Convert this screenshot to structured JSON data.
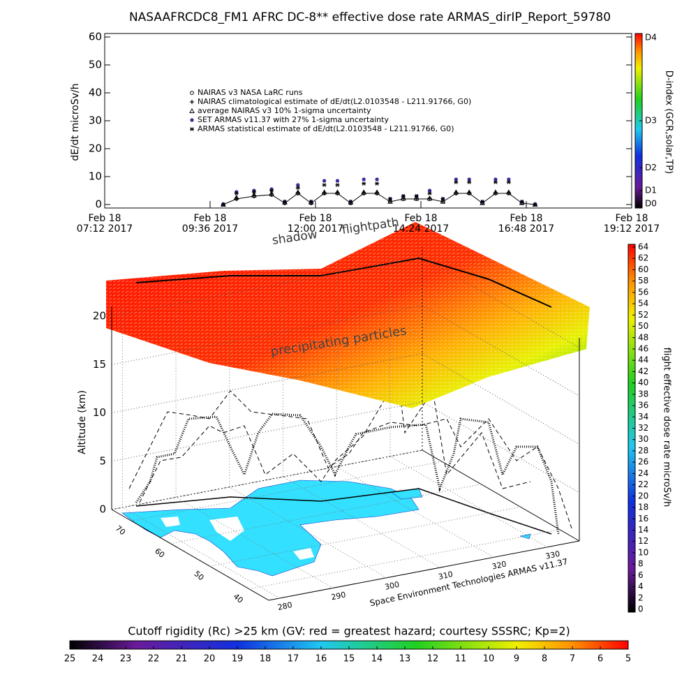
{
  "chart_data": [
    {
      "type": "line",
      "title": "NASAAFRCDC8_FM1 AFRC DC-8** effective dose rate ARMAS_dirIP_Report_59780",
      "y_label": "dE/dt microSv/h",
      "xlim": [
        7.2,
        19.2
      ],
      "xticks": [
        {
          "value": 7.2,
          "label": "Feb 18\n07:12 2017"
        },
        {
          "value": 9.6,
          "label": "Feb 18\n09:36 2017"
        },
        {
          "value": 12.0,
          "label": "Feb 18\n12:00 2017"
        },
        {
          "value": 14.4,
          "label": "Feb 18\n14:24 2017"
        },
        {
          "value": 16.8,
          "label": "Feb 18\n16:48 2017"
        },
        {
          "value": 19.2,
          "label": "Feb 18\n19:12 2017"
        }
      ],
      "ylim": [
        0,
        60
      ],
      "yticks": [
        0,
        10,
        20,
        30,
        40,
        50,
        60
      ],
      "x": [
        9.9,
        10.2,
        10.6,
        11.0,
        11.3,
        11.6,
        11.9,
        12.2,
        12.5,
        12.8,
        13.1,
        13.4,
        13.7,
        14.0,
        14.3,
        14.6,
        14.9,
        15.2,
        15.5,
        15.8,
        16.1,
        16.4,
        16.7,
        17.0
      ],
      "series": [
        {
          "name": "NAIRAS v3 NASA LaRC runs",
          "marker": "circle",
          "color": "#000000",
          "values": [
            0,
            2,
            3,
            3.5,
            0.5,
            4,
            0.5,
            4,
            4,
            0.5,
            4,
            4,
            1,
            2,
            2,
            2,
            1,
            4,
            4,
            0.5,
            4,
            4,
            0.5,
            0
          ]
        },
        {
          "name": "NAIRAS climatological estimate of dE/dt(L2.0103548 - L211.91766, G0)",
          "marker": "cross",
          "color": "#000000",
          "values": [
            0,
            2.2,
            3.2,
            3.7,
            0.7,
            4.2,
            0.7,
            4.2,
            4.2,
            0.7,
            4.2,
            4.2,
            1.2,
            2.2,
            2.2,
            2.2,
            1.2,
            4.2,
            4.2,
            0.7,
            4.2,
            4.2,
            0.7,
            0
          ]
        },
        {
          "name": "average NAIRAS v3 10% 1-sigma uncertainty",
          "marker": "triangle",
          "color": "#000000",
          "values": [
            0,
            2.5,
            3.3,
            3.8,
            0.8,
            4.4,
            0.8,
            4.4,
            4.4,
            0.8,
            4.4,
            4.4,
            1.1,
            2.2,
            2.2,
            2.2,
            1.1,
            4.4,
            4.4,
            0.6,
            4.4,
            4.4,
            0.6,
            0
          ]
        },
        {
          "name": "SET ARMAS v11.37 with 27% 1-sigma uncertainty",
          "marker": "dot",
          "color": "#3a2a9a",
          "values": [
            0,
            4.5,
            5,
            5.5,
            1,
            7,
            1,
            8.5,
            8.5,
            1,
            9,
            9,
            2,
            3,
            3,
            5,
            2,
            9,
            9,
            1,
            9,
            9,
            1,
            0
          ]
        },
        {
          "name": "ARMAS statistical estimate of dE/dt(L2.0103548 - L211.91766, G0)",
          "marker": "star",
          "color": "#000000",
          "values": [
            0,
            4,
            4.5,
            5,
            1,
            6,
            1,
            7,
            7,
            1,
            7.5,
            7.5,
            2,
            3,
            3,
            4,
            2,
            8,
            8,
            1,
            8,
            8,
            1,
            0
          ]
        }
      ],
      "colorbar": {
        "label": "D-index (GCR,solar,TP)",
        "lim": [
          0,
          1
        ],
        "ticks": [
          {
            "value": 0,
            "label": "D0"
          },
          {
            "value": 0.1,
            "label": "D1"
          },
          {
            "value": 0.23,
            "label": "D2"
          },
          {
            "value": 0.5,
            "label": "D3"
          },
          {
            "value": 1,
            "label": "D4"
          }
        ]
      }
    },
    {
      "type": "surface3d",
      "z_label": "Altitude (km)",
      "zlim": [
        0,
        21
      ],
      "zticks": [
        0,
        5,
        10,
        15,
        20
      ],
      "latlim": [
        35,
        75
      ],
      "latticks": [
        40,
        50,
        60,
        70
      ],
      "lonlim": [
        278,
        336
      ],
      "lonticks": [
        280,
        290,
        300,
        310,
        320,
        330
      ],
      "annotations": [
        "shadow",
        "flightpath",
        "precipitating particles"
      ],
      "credit": "Space Environment Technologies ARMAS v11.37",
      "colorbar": {
        "label": "flight effective dose rate microSv/h",
        "lim": [
          0,
          64
        ],
        "ticks": [
          0,
          2,
          4,
          6,
          8,
          10,
          12,
          14,
          16,
          18,
          20,
          22,
          24,
          26,
          28,
          30,
          32,
          34,
          36,
          38,
          40,
          42,
          44,
          46,
          48,
          50,
          52,
          54,
          56,
          58,
          60,
          62,
          64
        ]
      },
      "rigidity_colorbar": {
        "label": "Cutoff rigidity (Rc) >25 km (GV: red = greatest hazard; courtesy SSSRC; Kp=2)",
        "lim": [
          25,
          5
        ],
        "ticks": [
          25,
          24,
          23,
          22,
          21,
          20,
          19,
          18,
          17,
          16,
          15,
          14,
          13,
          12,
          11,
          10,
          9,
          8,
          7,
          6,
          5
        ]
      }
    }
  ]
}
